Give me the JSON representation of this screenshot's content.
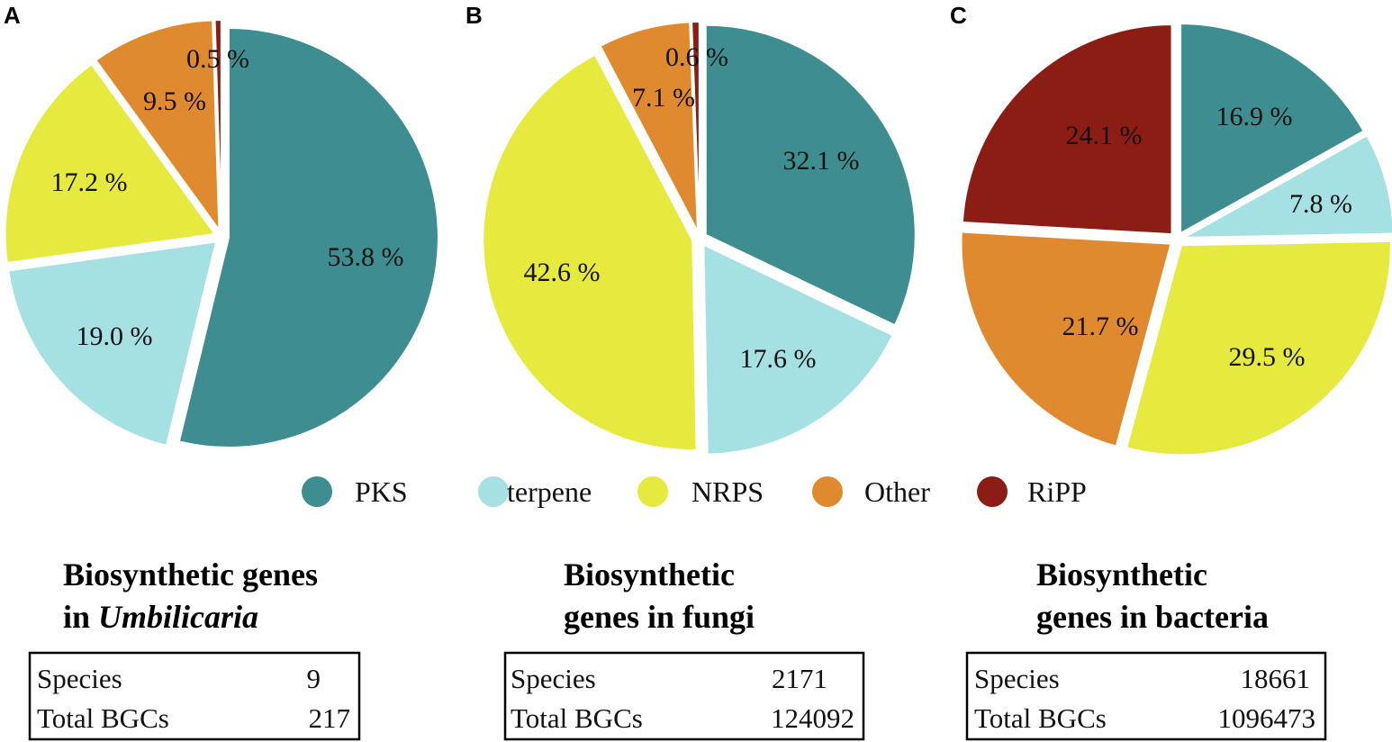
{
  "colors": {
    "PKS": "#3e8e91",
    "terpene": "#a5e0e2",
    "NRPS": "#e6e93e",
    "Other": "#e08a30",
    "RiPP": "#8b1d14"
  },
  "legend": [
    "PKS",
    "terpene",
    "NRPS",
    "Other",
    "RiPP"
  ],
  "chart_data": [
    {
      "type": "pie",
      "panel": "A",
      "title_line1": "Biosynthetic genes",
      "title_line2_prefix": "in ",
      "title_line2_italic": "Umbilicaria",
      "categories": [
        "PKS",
        "terpene",
        "NRPS",
        "Other",
        "RiPP"
      ],
      "values": [
        53.8,
        19.0,
        17.2,
        9.5,
        0.5
      ],
      "labels": [
        "53.8 %",
        "19.0 %",
        "17.2 %",
        "9.5 %",
        "0.5 %"
      ],
      "stats": [
        {
          "label": "Species",
          "value": "9"
        },
        {
          "label": "Total BGCs",
          "value": "217"
        }
      ]
    },
    {
      "type": "pie",
      "panel": "B",
      "title_line1": "Biosynthetic",
      "title_line2_prefix": "genes in fungi",
      "title_line2_italic": "",
      "categories": [
        "PKS",
        "terpene",
        "NRPS",
        "Other",
        "RiPP"
      ],
      "values": [
        32.1,
        17.6,
        42.6,
        7.1,
        0.6
      ],
      "labels": [
        "32.1 %",
        "17.6 %",
        "42.6 %",
        "7.1 %",
        "0.6 %"
      ],
      "stats": [
        {
          "label": "Species",
          "value": "2171"
        },
        {
          "label": "Total BGCs",
          "value": "124092"
        }
      ]
    },
    {
      "type": "pie",
      "panel": "C",
      "title_line1": "Biosynthetic",
      "title_line2_prefix": "genes in bacteria",
      "title_line2_italic": "",
      "categories": [
        "PKS",
        "terpene",
        "NRPS",
        "Other",
        "RiPP"
      ],
      "values": [
        16.9,
        7.8,
        29.5,
        21.7,
        24.1
      ],
      "labels": [
        "16.9 %",
        "7.8 %",
        "29.5 %",
        "21.7 %",
        "24.1 %"
      ],
      "stats": [
        {
          "label": "Species",
          "value": "18661"
        },
        {
          "label": "Total BGCs",
          "value": "1096473"
        }
      ]
    }
  ]
}
